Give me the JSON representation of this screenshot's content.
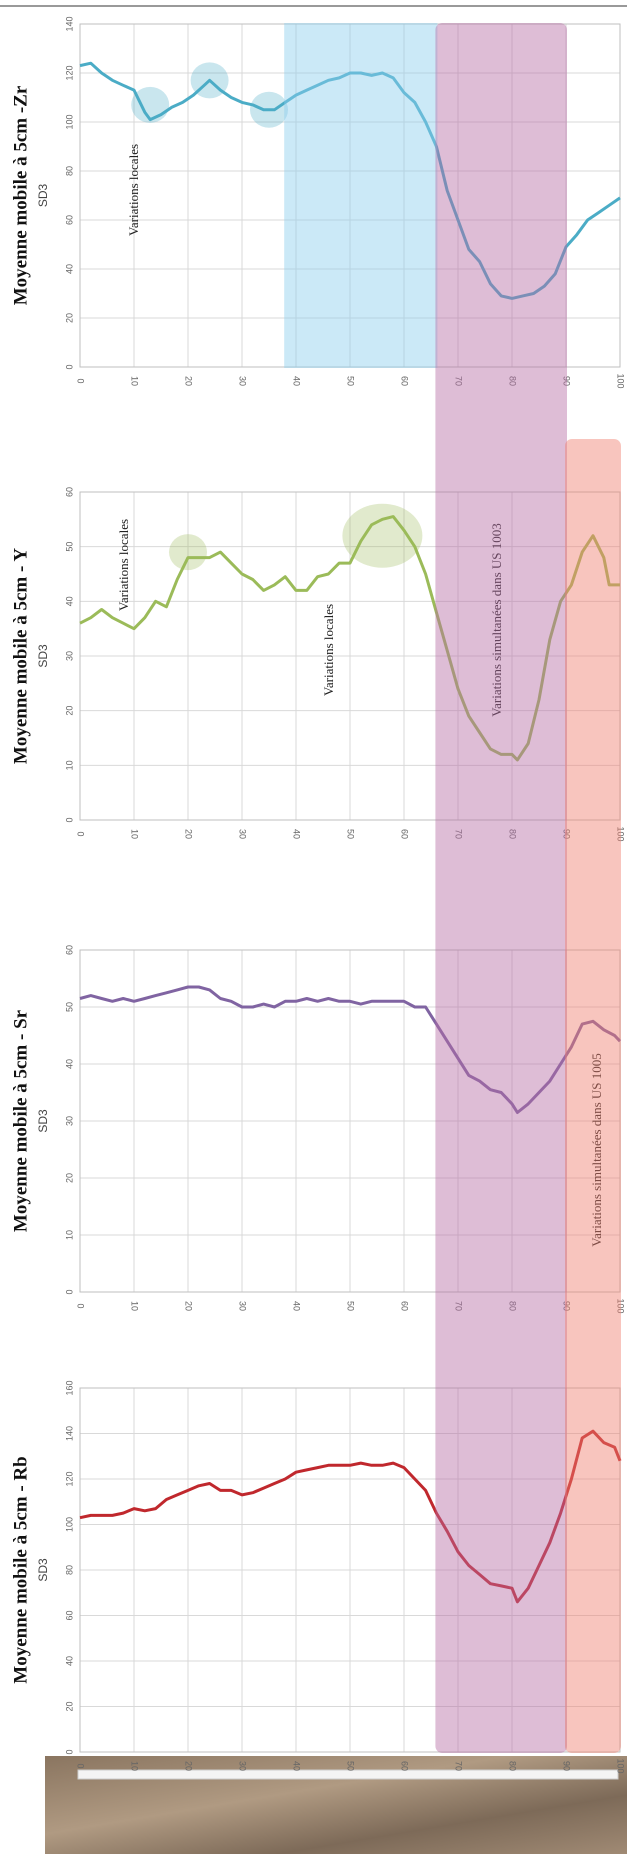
{
  "chart_data": [
    {
      "type": "line",
      "title": "Moyenne mobile à 5cm -Zr",
      "subtitle": "SD3",
      "x": [
        0,
        2,
        4,
        6,
        8,
        10,
        12,
        13,
        15,
        17,
        19,
        21,
        23,
        24,
        26,
        28,
        30,
        32,
        34,
        36,
        38,
        40,
        42,
        44,
        46,
        48,
        50,
        52,
        54,
        56,
        58,
        60,
        62,
        64,
        66,
        68,
        70,
        72,
        74,
        76,
        78,
        80,
        82,
        84,
        86,
        88,
        90,
        92,
        94,
        96,
        98,
        100
      ],
      "series": [
        {
          "color": "#4bacc6",
          "values": [
            123,
            124,
            120,
            117,
            115,
            113,
            104,
            101,
            103,
            106,
            108,
            111,
            115,
            117,
            113,
            110,
            108,
            107,
            105,
            105,
            108,
            111,
            113,
            115,
            117,
            118,
            120,
            120,
            119,
            120,
            118,
            112,
            108,
            100,
            90,
            72,
            60,
            48,
            43,
            34,
            29,
            28,
            29,
            30,
            33,
            38,
            49,
            54,
            60,
            63,
            66,
            69
          ]
        }
      ],
      "xlim": [
        0,
        100
      ],
      "xticks": [
        0,
        10,
        20,
        30,
        40,
        50,
        60,
        70,
        80,
        90,
        100
      ],
      "ylim": [
        0,
        140
      ],
      "yticks": [
        0,
        20,
        40,
        60,
        80,
        100,
        120,
        140
      ],
      "annotations": [
        "Variations locales"
      ]
    },
    {
      "type": "line",
      "title": "Moyenne mobile à 5cm - Y",
      "subtitle": "SD3",
      "x": [
        0,
        2,
        4,
        6,
        8,
        10,
        12,
        14,
        16,
        18,
        20,
        22,
        24,
        26,
        28,
        30,
        32,
        34,
        36,
        38,
        40,
        42,
        44,
        46,
        48,
        50,
        52,
        54,
        56,
        58,
        60,
        62,
        64,
        66,
        68,
        70,
        72,
        74,
        76,
        78,
        80,
        81,
        83,
        85,
        87,
        89,
        91,
        93,
        95,
        97,
        98,
        100
      ],
      "series": [
        {
          "color": "#9bbb59",
          "values": [
            36,
            37,
            38.5,
            37,
            36,
            35,
            37,
            40,
            39,
            44,
            48,
            48,
            48,
            49,
            47,
            45,
            44,
            42,
            43,
            44.5,
            42,
            42,
            44.5,
            45,
            47,
            47,
            51,
            54,
            55,
            55.5,
            53,
            50,
            45,
            38,
            31,
            24,
            19,
            16,
            13,
            12,
            12,
            11,
            14,
            22,
            33,
            40,
            43,
            49,
            52,
            48,
            43,
            43
          ]
        }
      ],
      "xlim": [
        0,
        100
      ],
      "xticks": [
        0,
        10,
        20,
        30,
        40,
        50,
        60,
        70,
        80,
        90,
        100
      ],
      "ylim": [
        0,
        60
      ],
      "yticks": [
        0,
        10,
        20,
        30,
        40,
        50,
        60
      ],
      "annotations": [
        "Variations locales",
        "Variations locales",
        "Variations simultanées dans US 1003"
      ]
    },
    {
      "type": "line",
      "title": "Moyenne mobile à 5cm - Sr",
      "subtitle": "SD3",
      "x": [
        0,
        2,
        4,
        6,
        8,
        10,
        12,
        14,
        16,
        18,
        20,
        22,
        24,
        26,
        28,
        30,
        32,
        34,
        36,
        38,
        40,
        42,
        44,
        46,
        48,
        50,
        52,
        54,
        56,
        58,
        60,
        62,
        64,
        66,
        68,
        70,
        72,
        74,
        76,
        78,
        80,
        81,
        83,
        85,
        87,
        89,
        91,
        93,
        95,
        97,
        99,
        100
      ],
      "series": [
        {
          "color": "#8064a2",
          "values": [
            51.5,
            52,
            51.5,
            51,
            51.5,
            51,
            51.5,
            52,
            52.5,
            53,
            53.5,
            53.5,
            53,
            51.5,
            51,
            50,
            50,
            50.5,
            50,
            51,
            51,
            51.5,
            51,
            51.5,
            51,
            51,
            50.5,
            51,
            51,
            51,
            51,
            50,
            50,
            47,
            44,
            41,
            38,
            37,
            35.5,
            35,
            33,
            31.5,
            33,
            35,
            37,
            40,
            43,
            47,
            47.5,
            46,
            45,
            44
          ]
        }
      ],
      "xlim": [
        0,
        100
      ],
      "xticks": [
        0,
        10,
        20,
        30,
        40,
        50,
        60,
        70,
        80,
        90,
        100
      ],
      "ylim": [
        0,
        60
      ],
      "yticks": [
        0,
        10,
        20,
        30,
        40,
        50,
        60
      ],
      "annotations": [
        "Variations simultanées dans US 1005"
      ]
    },
    {
      "type": "line",
      "title": "Moyenne mobile à 5cm - Rb",
      "subtitle": "SD3",
      "x": [
        0,
        2,
        4,
        6,
        8,
        10,
        12,
        14,
        16,
        18,
        20,
        22,
        24,
        26,
        28,
        30,
        32,
        34,
        36,
        38,
        40,
        42,
        44,
        46,
        48,
        50,
        52,
        54,
        56,
        58,
        60,
        62,
        64,
        66,
        68,
        70,
        72,
        74,
        76,
        78,
        80,
        81,
        83,
        85,
        87,
        89,
        91,
        93,
        95,
        97,
        99,
        100
      ],
      "series": [
        {
          "color": "#c0282d",
          "values": [
            103,
            104,
            104,
            104,
            105,
            107,
            106,
            107,
            111,
            113,
            115,
            117,
            118,
            115,
            115,
            113,
            114,
            116,
            118,
            120,
            123,
            124,
            125,
            126,
            126,
            126,
            127,
            126,
            126,
            127,
            125,
            120,
            115,
            105,
            97,
            88,
            82,
            78,
            74,
            73,
            72,
            66,
            72,
            82,
            92,
            105,
            120,
            138,
            141,
            136,
            134,
            128
          ]
        }
      ],
      "xlim": [
        0,
        100
      ],
      "xticks": [
        0,
        10,
        20,
        30,
        40,
        50,
        60,
        70,
        80,
        90,
        100
      ],
      "ylim": [
        0,
        160
      ],
      "yticks": [
        0,
        20,
        40,
        60,
        80,
        100,
        120,
        140,
        160
      ],
      "annotations": []
    }
  ],
  "highlights": [
    {
      "x": [
        38,
        66
      ],
      "color": "#8ecfef"
    },
    {
      "x": [
        66,
        90
      ],
      "color": "#b76ea6"
    },
    {
      "x": [
        90,
        100
      ],
      "color": "#f08070"
    }
  ]
}
